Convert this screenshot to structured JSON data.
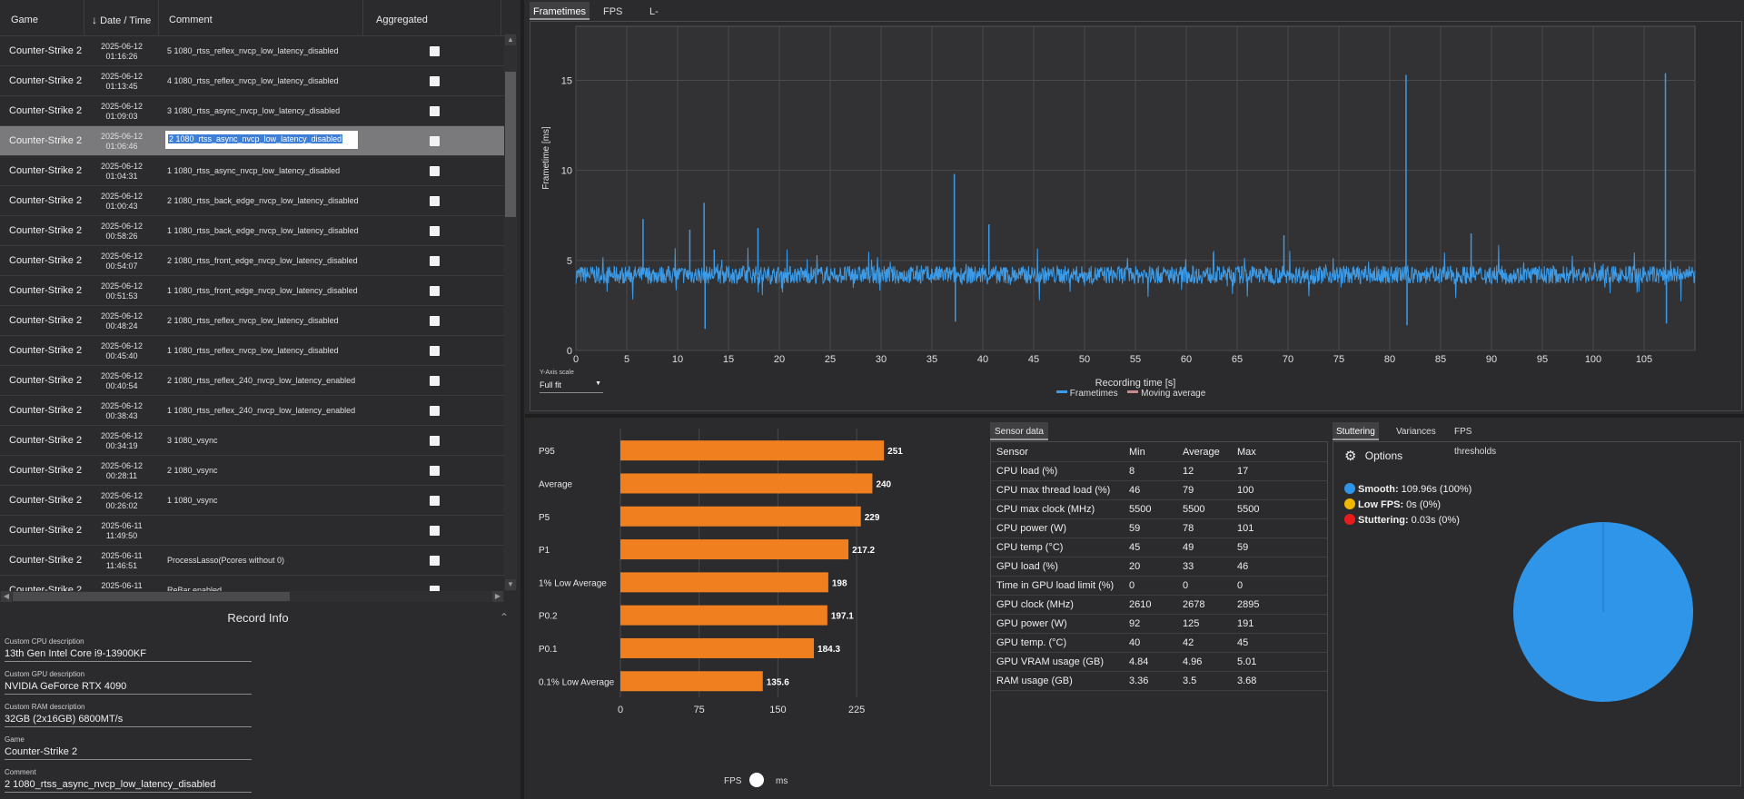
{
  "grid": {
    "headers": {
      "game": "Game",
      "date": "Date / Time",
      "comment": "Comment",
      "aggregated": "Aggregated"
    },
    "rows": [
      {
        "game": "Counter-Strike 2",
        "date": "2025-06-12",
        "time": "01:16:26",
        "comment": "5 1080_rtss_reflex_nvcp_low_latency_disabled"
      },
      {
        "game": "Counter-Strike 2",
        "date": "2025-06-12",
        "time": "01:13:45",
        "comment": "4 1080_rtss_reflex_nvcp_low_latency_disabled"
      },
      {
        "game": "Counter-Strike 2",
        "date": "2025-06-12",
        "time": "01:09:03",
        "comment": "3 1080_rtss_async_nvcp_low_latency_disabled"
      },
      {
        "game": "Counter-Strike 2",
        "date": "2025-06-12",
        "time": "01:06:46",
        "comment": "2 1080_rtss_async_nvcp_low_latency_disabled"
      },
      {
        "game": "Counter-Strike 2",
        "date": "2025-06-12",
        "time": "01:04:31",
        "comment": "1 1080_rtss_async_nvcp_low_latency_disabled"
      },
      {
        "game": "Counter-Strike 2",
        "date": "2025-06-12",
        "time": "01:00:43",
        "comment": "2 1080_rtss_back_edge_nvcp_low_latency_disabled"
      },
      {
        "game": "Counter-Strike 2",
        "date": "2025-06-12",
        "time": "00:58:26",
        "comment": "1 1080_rtss_back_edge_nvcp_low_latency_disabled"
      },
      {
        "game": "Counter-Strike 2",
        "date": "2025-06-12",
        "time": "00:54:07",
        "comment": "2 1080_rtss_front_edge_nvcp_low_latency_disabled"
      },
      {
        "game": "Counter-Strike 2",
        "date": "2025-06-12",
        "time": "00:51:53",
        "comment": "1 1080_rtss_front_edge_nvcp_low_latency_disabled"
      },
      {
        "game": "Counter-Strike 2",
        "date": "2025-06-12",
        "time": "00:48:24",
        "comment": "2 1080_rtss_reflex_nvcp_low_latency_disabled"
      },
      {
        "game": "Counter-Strike 2",
        "date": "2025-06-12",
        "time": "00:45:40",
        "comment": "1 1080_rtss_reflex_nvcp_low_latency_disabled"
      },
      {
        "game": "Counter-Strike 2",
        "date": "2025-06-12",
        "time": "00:40:54",
        "comment": "2 1080_rtss_reflex_240_nvcp_low_latency_enabled"
      },
      {
        "game": "Counter-Strike 2",
        "date": "2025-06-12",
        "time": "00:38:43",
        "comment": "1 1080_rtss_reflex_240_nvcp_low_latency_enabled"
      },
      {
        "game": "Counter-Strike 2",
        "date": "2025-06-12",
        "time": "00:34:19",
        "comment": "3 1080_vsync"
      },
      {
        "game": "Counter-Strike 2",
        "date": "2025-06-12",
        "time": "00:28:11",
        "comment": "2 1080_vsync"
      },
      {
        "game": "Counter-Strike 2",
        "date": "2025-06-12",
        "time": "00:26:02",
        "comment": "1 1080_vsync"
      },
      {
        "game": "Counter-Strike 2",
        "date": "2025-06-11",
        "time": "11:49:50",
        "comment": ""
      },
      {
        "game": "Counter-Strike 2",
        "date": "2025-06-11",
        "time": "11:46:51",
        "comment": "ProcessLasso(Pcores without 0)"
      },
      {
        "game": "Counter-Strike 2",
        "date": "2025-06-11",
        "time": "",
        "comment": "ReBar enabled"
      }
    ],
    "selected_index": 3
  },
  "record_info": {
    "title": "Record Info",
    "fields": [
      {
        "label": "Custom CPU description",
        "value": "13th Gen Intel Core i9-13900KF"
      },
      {
        "label": "Custom GPU description",
        "value": "NVIDIA GeForce RTX 4090"
      },
      {
        "label": "Custom RAM description",
        "value": "32GB (2x16GB) 6800MT/s"
      },
      {
        "label": "Game",
        "value": "Counter-Strike 2"
      },
      {
        "label": "Comment",
        "value": "2 1080_rtss_async_nvcp_low_latency_disabled"
      }
    ]
  },
  "top_tabs": [
    "Frametimes",
    "FPS",
    "L-shape"
  ],
  "frametime_chart": {
    "ylabel": "Frametime [ms]",
    "xlabel": "Recording time [s]",
    "yaxis_scale_label": "Y-Axis scale",
    "yaxis_scale_value": "Full fit",
    "legend": [
      "Frametimes",
      "Moving average"
    ],
    "series_color": "#3b9be8",
    "moving_avg_color": "#c78b8b"
  },
  "bar_footer": {
    "left": "FPS",
    "right": "ms"
  },
  "sensor": {
    "tab": "Sensor data",
    "headers": [
      "Sensor",
      "Min",
      "Average",
      "Max"
    ],
    "rows": [
      [
        "CPU load (%)",
        "8",
        "12",
        "17"
      ],
      [
        "CPU max thread load (%)",
        "46",
        "79",
        "100"
      ],
      [
        "CPU max clock (MHz)",
        "5500",
        "5500",
        "5500"
      ],
      [
        "CPU power (W)",
        "59",
        "78",
        "101"
      ],
      [
        "CPU temp (°C)",
        "45",
        "49",
        "59"
      ],
      [
        "GPU load (%)",
        "20",
        "33",
        "46"
      ],
      [
        "Time in GPU load limit (%)",
        "0",
        "0",
        "0"
      ],
      [
        "GPU clock (MHz)",
        "2610",
        "2678",
        "2895"
      ],
      [
        "GPU power (W)",
        "92",
        "125",
        "191"
      ],
      [
        "GPU temp. (°C)",
        "40",
        "42",
        "45"
      ],
      [
        "GPU VRAM usage (GB)",
        "4.84",
        "4.96",
        "5.01"
      ],
      [
        "RAM usage (GB)",
        "3.36",
        "3.5",
        "3.68"
      ]
    ]
  },
  "stuttering": {
    "tabs": [
      "Stuttering",
      "Variances",
      "FPS thresholds"
    ],
    "options_label": "Options",
    "legend": [
      {
        "name": "Smooth:",
        "value": "109.96s (100%)",
        "color": "#2e95e8"
      },
      {
        "name": "Low FPS:",
        "value": "0s (0%)",
        "color": "#f0b800"
      },
      {
        "name": "Stuttering:",
        "value": "0.03s (0%)",
        "color": "#e81c1c"
      }
    ],
    "pie_color": "#2e95e8"
  },
  "chart_data": [
    {
      "type": "line",
      "title": "",
      "xlabel": "Recording time [s]",
      "ylabel": "Frametime [ms]",
      "xlim": [
        0,
        110
      ],
      "ylim": [
        0,
        18
      ],
      "xticks": [
        0,
        5,
        10,
        15,
        20,
        25,
        30,
        35,
        40,
        45,
        50,
        55,
        60,
        65,
        70,
        75,
        80,
        85,
        90,
        95,
        100,
        105
      ],
      "yticks": [
        0,
        5,
        10,
        15
      ],
      "baseline": 4.2,
      "spikes": [
        [
          12.6,
          8.2
        ],
        [
          12.7,
          1.2
        ],
        [
          6.6,
          7.3
        ],
        [
          11.2,
          6.7
        ],
        [
          13.6,
          5.6
        ],
        [
          17.9,
          6.8
        ],
        [
          37.2,
          9.8
        ],
        [
          37.3,
          1.6
        ],
        [
          40.6,
          7.0
        ],
        [
          69.6,
          6.4
        ],
        [
          81.6,
          15.3
        ],
        [
          81.7,
          1.4
        ],
        [
          88.0,
          6.5
        ],
        [
          107.1,
          15.4
        ],
        [
          107.2,
          1.5
        ]
      ],
      "series": [
        {
          "name": "Frametimes"
        },
        {
          "name": "Moving average"
        }
      ]
    },
    {
      "type": "bar",
      "title": "",
      "categories": [
        "P95",
        "Average",
        "P5",
        "P1",
        "1% Low Average",
        "P0.2",
        "P0.1",
        "0.1% Low Average"
      ],
      "values": [
        251,
        240,
        229,
        217.2,
        198,
        197.1,
        184.3,
        135.6
      ],
      "value_labels": [
        "251",
        "240",
        "229",
        "217.2",
        "198",
        "197.1",
        "184.3",
        "135.6"
      ],
      "xlim": [
        0,
        250
      ],
      "xticks": [
        0,
        75,
        150,
        225
      ],
      "color": "#f07f1f"
    },
    {
      "type": "pie",
      "values": [
        109.96,
        0,
        0.03
      ],
      "labels": [
        "Smooth",
        "Low FPS",
        "Stuttering"
      ]
    }
  ]
}
